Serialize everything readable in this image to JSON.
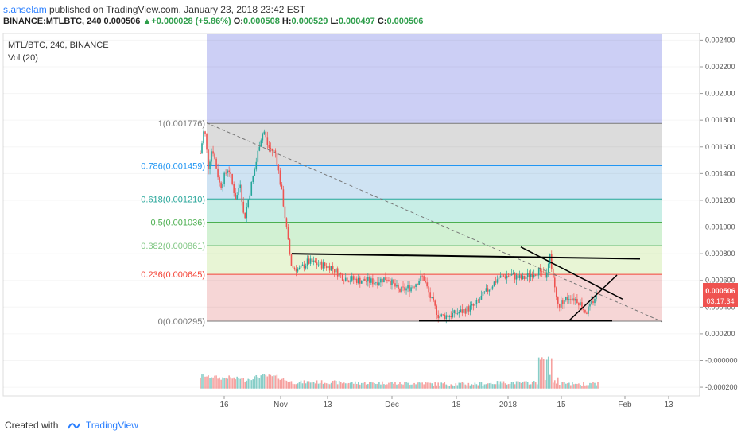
{
  "header": {
    "author": "s.anselam",
    "published": "published on TradingView.com, January 23, 2018 23:42 EST",
    "symbol": "BINANCE:MTLBTC, 240",
    "last": "0.000506",
    "change_arrow": "▲",
    "change": "+0.000028 (+5.86%)",
    "o_label": "O:",
    "o_value": "0.000508",
    "h_label": "H:",
    "h_value": "0.000529",
    "l_label": "L:",
    "l_value": "0.000497",
    "c_label": "C:",
    "c_value": "0.000506"
  },
  "legend": {
    "title": "MTL/BTC, 240, BINANCE",
    "vol": "Vol (20)"
  },
  "price_tag": {
    "value": "0.000506",
    "timer": "03:17:34"
  },
  "footer": {
    "created_with": "Created with",
    "brand": "TradingView"
  },
  "colors": {
    "up": "#26a69a",
    "down": "#ef5350",
    "trendline": "#000000",
    "fib_top": "#7b68ee",
    "fib_0": "#ef5350",
    "accent": "#2a7fff"
  },
  "chart_data": {
    "type": "candlestick",
    "y_ticks": [
      "0.002400",
      "0.002200",
      "0.002000",
      "0.001800",
      "0.001600",
      "0.001400",
      "0.001200",
      "0.001000",
      "0.000800",
      "0.000600",
      "0.000400",
      "0.000200",
      "-0.000000",
      "-0.000200"
    ],
    "x_ticks": [
      "16",
      "Nov",
      "13",
      "Dec",
      "18",
      "2018",
      "15",
      "Feb",
      "13"
    ],
    "ylim": [
      -0.000265,
      0.00245
    ],
    "fib_levels": [
      {
        "ratio": "1",
        "value": 0.001776,
        "label": "1(0.001776)",
        "color": "#787878"
      },
      {
        "ratio": "0.786",
        "value": 0.001459,
        "label": "0.786(0.001459)",
        "color": "#2196f3"
      },
      {
        "ratio": "0.618",
        "value": 0.00121,
        "label": "0.618(0.001210)",
        "color": "#26a69a"
      },
      {
        "ratio": "0.5",
        "value": 0.001036,
        "label": "0.5(0.001036)",
        "color": "#4caf50"
      },
      {
        "ratio": "0.382",
        "value": 0.000861,
        "label": "0.382(0.000861)",
        "color": "#81c784"
      },
      {
        "ratio": "0.236",
        "value": 0.000645,
        "label": "0.236(0.000645)",
        "color": "#f44336"
      },
      {
        "ratio": "0",
        "value": 0.000295,
        "label": "0(0.000295)",
        "color": "#787878"
      }
    ],
    "price_path": [
      [
        0.0,
        0.00155
      ],
      [
        0.01,
        0.00175
      ],
      [
        0.02,
        0.00145
      ],
      [
        0.03,
        0.0016
      ],
      [
        0.05,
        0.0013
      ],
      [
        0.07,
        0.00145
      ],
      [
        0.09,
        0.0012
      ],
      [
        0.1,
        0.00135
      ],
      [
        0.11,
        0.00105
      ],
      [
        0.12,
        0.0012
      ],
      [
        0.14,
        0.00148
      ],
      [
        0.15,
        0.00165
      ],
      [
        0.16,
        0.00172
      ],
      [
        0.17,
        0.0016
      ],
      [
        0.19,
        0.00155
      ],
      [
        0.2,
        0.00135
      ],
      [
        0.21,
        0.00115
      ],
      [
        0.22,
        0.0009
      ],
      [
        0.23,
        0.0007
      ],
      [
        0.25,
        0.00068
      ],
      [
        0.27,
        0.00074
      ],
      [
        0.3,
        0.00072
      ],
      [
        0.33,
        0.0007
      ],
      [
        0.36,
        0.00062
      ],
      [
        0.4,
        0.0006
      ],
      [
        0.44,
        0.00059
      ],
      [
        0.47,
        0.00062
      ],
      [
        0.5,
        0.00052
      ],
      [
        0.53,
        0.00055
      ],
      [
        0.56,
        0.00063
      ],
      [
        0.58,
        0.00046
      ],
      [
        0.6,
        0.00033
      ],
      [
        0.63,
        0.00034
      ],
      [
        0.66,
        0.00037
      ],
      [
        0.69,
        0.00041
      ],
      [
        0.72,
        0.00052
      ],
      [
        0.75,
        0.00062
      ],
      [
        0.78,
        0.00064
      ],
      [
        0.81,
        0.00061
      ],
      [
        0.84,
        0.00066
      ],
      [
        0.86,
        0.00068
      ],
      [
        0.87,
        0.00062
      ],
      [
        0.88,
        0.00078
      ],
      [
        0.89,
        0.00057
      ],
      [
        0.9,
        0.0004
      ],
      [
        0.91,
        0.00044
      ],
      [
        0.93,
        0.00048
      ],
      [
        0.95,
        0.00045
      ],
      [
        0.97,
        0.00036
      ],
      [
        0.98,
        0.0004
      ],
      [
        1.0,
        0.00052
      ]
    ]
  }
}
